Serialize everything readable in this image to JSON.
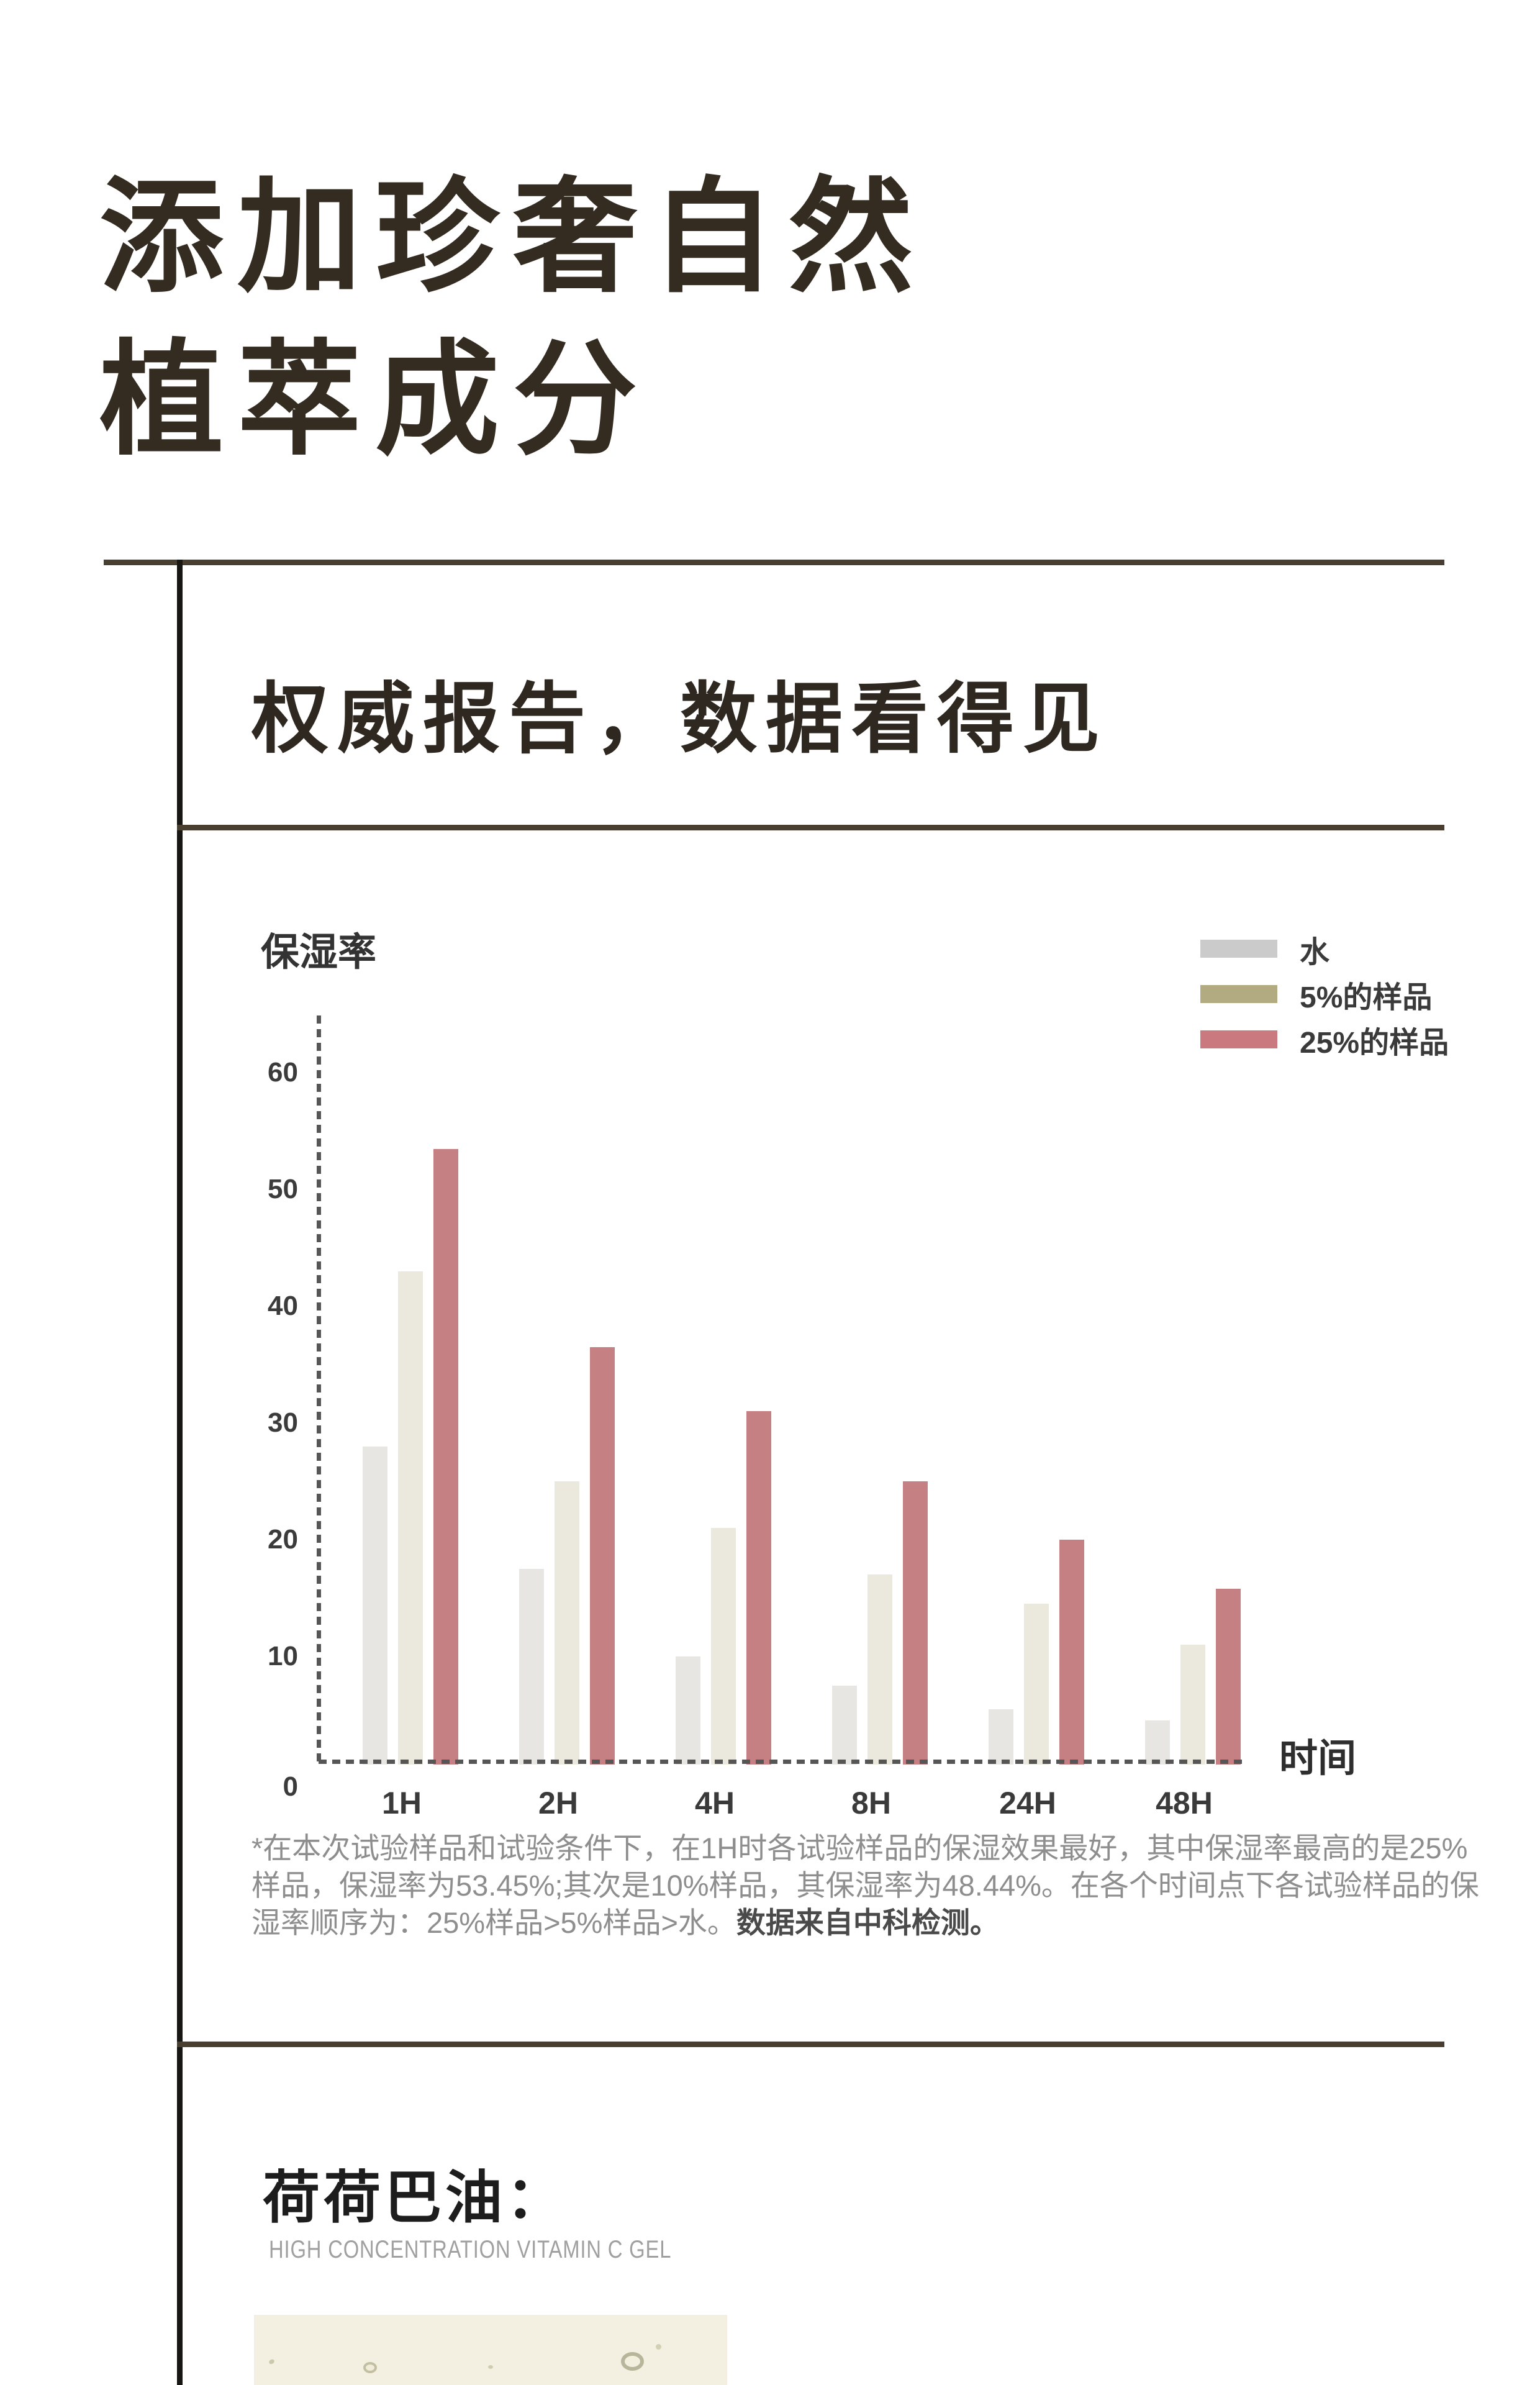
{
  "page_title": {
    "line1": "添加珍奢自然",
    "line2": "植萃成分"
  },
  "section_title": "权威报告，数据看得见",
  "chart_data": {
    "type": "bar",
    "title": "保湿率",
    "ylabel": "保湿率",
    "xlabel": "时间",
    "categories": [
      "1H",
      "2H",
      "4H",
      "8H",
      "24H",
      "48H"
    ],
    "series": [
      {
        "name": "水",
        "legend_color": "#cbcbcb",
        "bar_color": "#e7e6e3",
        "values": [
          28,
          17.5,
          10,
          7.5,
          5.5,
          4.5
        ]
      },
      {
        "name": "5%的样品",
        "legend_color": "#b2aa80",
        "bar_color": "#ebe8de",
        "values": [
          43,
          25,
          21,
          17,
          14.5,
          11
        ]
      },
      {
        "name": "25%的样品",
        "legend_color": "#ca7a7e",
        "bar_color": "#c48083",
        "values": [
          53.45,
          36.5,
          31,
          25,
          20,
          15.8
        ]
      }
    ],
    "yticks": [
      0,
      10,
      20,
      30,
      40,
      50,
      60
    ],
    "ylim": [
      0,
      65
    ],
    "grid": false,
    "legend_position": "top-right",
    "axis_style": "dashed"
  },
  "footnote": {
    "line1": "*在本次试验样品和试验条件下，在1H时各试验样品的保湿效果最好，其中保湿率最高的是25%",
    "line2": "样品，保湿率为53.45%;其次是10%样品，其保湿率为48.44%。在各个时间点下各试验样品的保",
    "line3_regular": "湿率顺序为：25%样品>5%样品>水。",
    "line3_bold": "数据来自中科检测。"
  },
  "ingredient": {
    "title": "荷荷巴油：",
    "subtitle": "HIGH CONCENTRATION VITAMIN C GEL"
  }
}
